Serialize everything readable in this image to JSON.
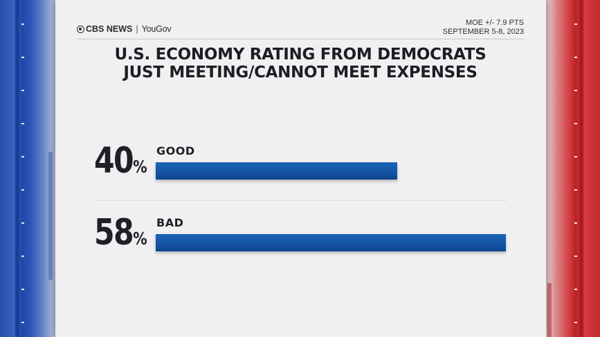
{
  "header": {
    "brand_primary": "CBS NEWS",
    "brand_secondary": "YouGov",
    "moe": "MOE +/- 7.9 PTS",
    "dates": "SEPTEMBER 5-8, 2023"
  },
  "title_line1": "U.S. ECONOMY RATING FROM DEMOCRATS",
  "title_line2": "JUST MEETING/CANNOT MEET EXPENSES",
  "rows": [
    {
      "label": "GOOD",
      "pct_text": "40",
      "pct_symbol": "%"
    },
    {
      "label": "BAD",
      "pct_text": "58",
      "pct_symbol": "%"
    }
  ],
  "chart_data": {
    "type": "bar",
    "orientation": "horizontal",
    "title": "U.S. ECONOMY RATING FROM DEMOCRATS JUST MEETING/CANNOT MEET EXPENSES",
    "categories": [
      "GOOD",
      "BAD"
    ],
    "values": [
      40,
      58
    ],
    "unit": "%",
    "xlim": [
      0,
      58
    ],
    "grid": false,
    "bar_color": "#1556a6"
  },
  "colors": {
    "bar": "#1556a6",
    "left_panel": "#2a4fa8",
    "right_panel": "#c42a2f",
    "text": "#1d1d22"
  }
}
